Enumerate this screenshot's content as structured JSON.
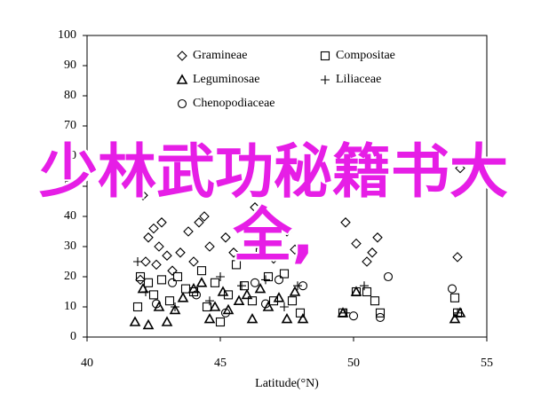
{
  "chart_data": {
    "type": "scatter",
    "x_label": "Latitude(°N)",
    "xlim": [
      40,
      55
    ],
    "xticks": [
      40,
      45,
      50,
      55
    ],
    "ylim": [
      0,
      100
    ],
    "yticks": [
      0,
      10,
      20,
      30,
      40,
      50,
      60,
      70,
      80,
      90,
      100
    ],
    "series": [
      {
        "name": "Gramineae",
        "marker": "diamond",
        "color": "#000000",
        "x": [
          42.0,
          42.2,
          42.3,
          42.5,
          42.8,
          42.7,
          43.0,
          42.6,
          43.2,
          43.5,
          43.8,
          44.2,
          44.4,
          44.0,
          44.6,
          45.2,
          45.5,
          46.0,
          46.3,
          46.5,
          47.0,
          47.5,
          47.8,
          49.7,
          50.1,
          50.5,
          50.7,
          50.9,
          53.9,
          54.0,
          42.1
        ],
        "values": [
          19,
          25,
          33,
          36,
          38,
          30,
          27,
          24,
          22,
          28,
          35,
          38,
          40,
          25,
          30,
          33,
          28,
          38,
          43,
          32,
          26,
          35,
          29,
          38,
          31,
          25,
          28,
          33,
          26.5,
          56,
          47
        ]
      },
      {
        "name": "Compositae",
        "marker": "square",
        "color": "#000000",
        "x": [
          41.9,
          42.0,
          42.3,
          42.5,
          42.8,
          43.1,
          43.4,
          43.7,
          44.0,
          44.3,
          44.5,
          44.8,
          45.0,
          45.3,
          45.6,
          45.9,
          46.2,
          46.5,
          46.8,
          47.0,
          47.4,
          47.7,
          48.0,
          49.6,
          50.1,
          50.5,
          50.8,
          51.0,
          53.8,
          53.9
        ],
        "values": [
          10,
          20,
          18,
          14,
          19,
          12,
          20,
          16,
          15,
          22,
          10,
          18,
          5,
          14,
          24,
          17,
          12,
          28,
          20,
          12,
          21,
          12,
          8,
          8,
          15,
          15,
          12,
          8,
          13,
          8
        ]
      },
      {
        "name": "Leguminosae",
        "marker": "triangle",
        "color": "#000000",
        "x": [
          41.8,
          42.1,
          42.3,
          42.7,
          43.0,
          43.3,
          43.6,
          44.0,
          44.3,
          44.6,
          44.8,
          45.1,
          45.3,
          45.7,
          46.0,
          46.2,
          46.5,
          46.8,
          47.2,
          47.5,
          47.8,
          48.1,
          49.6,
          50.1,
          53.8,
          54.0
        ],
        "values": [
          5,
          16,
          4,
          10,
          5,
          9,
          13,
          16,
          18,
          6,
          10,
          15,
          9,
          12,
          14,
          6,
          16,
          10,
          13,
          6,
          15,
          6,
          8,
          15,
          6,
          8
        ]
      },
      {
        "name": "Liliaceae",
        "marker": "plus",
        "color": "#000000",
        "x": [
          41.9,
          42.2,
          43.3,
          44.6,
          45.0,
          45.8,
          46.7,
          47.4,
          47.9,
          49.7,
          50.4,
          53.9
        ],
        "values": [
          25,
          15,
          10,
          12,
          20,
          17,
          19,
          10,
          17,
          8,
          17,
          8
        ]
      },
      {
        "name": "Chenopodiaceae",
        "marker": "circle",
        "color": "#000000",
        "x": [
          42.6,
          43.2,
          44.1,
          45.2,
          46.3,
          46.7,
          47.2,
          48.1,
          50.0,
          51.3,
          53.7,
          51.0
        ],
        "values": [
          11,
          18,
          14,
          8,
          18,
          11,
          19,
          17,
          7,
          20,
          16,
          6.5
        ]
      }
    ]
  },
  "watermark": "少林武功秘籍书大全,"
}
